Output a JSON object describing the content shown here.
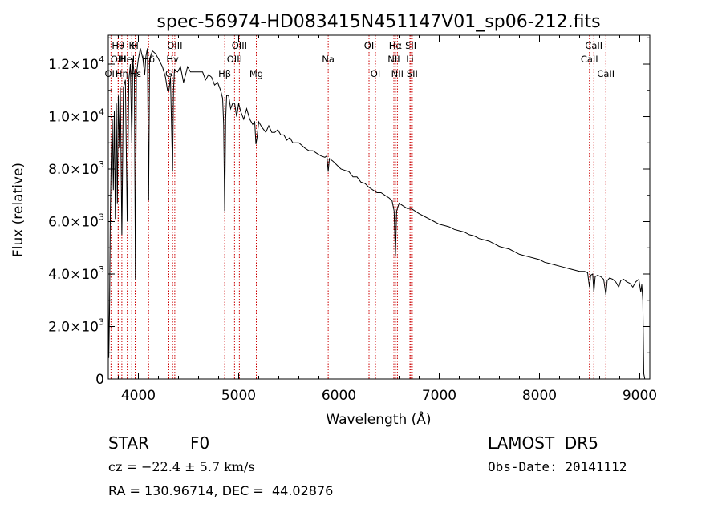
{
  "chart_data": {
    "type": "line",
    "title": "spec-56974-HD083415N451147V01_sp06-212.fits",
    "xlabel": "Wavelength (Å)",
    "ylabel": "Flux (relative)",
    "xlim": [
      3700,
      9100
    ],
    "ylim": [
      0,
      13100
    ],
    "grid": false,
    "xticks": [
      {
        "value": 4000,
        "label": "4000"
      },
      {
        "value": 5000,
        "label": "5000"
      },
      {
        "value": 6000,
        "label": "6000"
      },
      {
        "value": 7000,
        "label": "7000"
      },
      {
        "value": 8000,
        "label": "8000"
      },
      {
        "value": 9000,
        "label": "9000"
      }
    ],
    "yticks": [
      {
        "value": 0,
        "mant": "0",
        "exp": ""
      },
      {
        "value": 2000,
        "mant": "2.0×10",
        "exp": "3"
      },
      {
        "value": 4000,
        "mant": "4.0×10",
        "exp": "3"
      },
      {
        "value": 6000,
        "mant": "6.0×10",
        "exp": "3"
      },
      {
        "value": 8000,
        "mant": "8.0×10",
        "exp": "3"
      },
      {
        "value": 10000,
        "mant": "1.0×10",
        "exp": "4"
      },
      {
        "value": 12000,
        "mant": "1.2×10",
        "exp": "4"
      }
    ],
    "spectral_lines": [
      {
        "label": "OII",
        "wavelength": 3727,
        "row": 2
      },
      {
        "label": "Hθ",
        "wavelength": 3798,
        "row": 0
      },
      {
        "label": "OIII",
        "wavelength": 3800,
        "row": 1
      },
      {
        "label": "Hη",
        "wavelength": 3835,
        "row": 2
      },
      {
        "label": "HeI",
        "wavelength": 3889,
        "row": 1
      },
      {
        "label": "Hε",
        "wavelength": 3970,
        "row": 2
      },
      {
        "label": "K",
        "wavelength": 3934,
        "row": 0
      },
      {
        "label": "H",
        "wavelength": 3968,
        "row": 0
      },
      {
        "label": "Hδ",
        "wavelength": 4102,
        "row": 1
      },
      {
        "label": "G",
        "wavelength": 4304,
        "row": 2
      },
      {
        "label": "OIII",
        "wavelength": 4363,
        "row": 0
      },
      {
        "label": "Hγ",
        "wavelength": 4341,
        "row": 1
      },
      {
        "label": "Hβ",
        "wavelength": 4861,
        "row": 2
      },
      {
        "label": "OIII",
        "wavelength": 4959,
        "row": 1
      },
      {
        "label": "OIII",
        "wavelength": 5007,
        "row": 0
      },
      {
        "label": "Mg",
        "wavelength": 5176,
        "row": 2
      },
      {
        "label": "Na",
        "wavelength": 5893,
        "row": 1
      },
      {
        "label": "OI",
        "wavelength": 6300,
        "row": 0
      },
      {
        "label": "OI",
        "wavelength": 6364,
        "row": 2
      },
      {
        "label": "Hα",
        "wavelength": 6563,
        "row": 0
      },
      {
        "label": "NII",
        "wavelength": 6548,
        "row": 1
      },
      {
        "label": "NII",
        "wavelength": 6583,
        "row": 2
      },
      {
        "label": "SII",
        "wavelength": 6717,
        "row": 0
      },
      {
        "label": "Li",
        "wavelength": 6708,
        "row": 1
      },
      {
        "label": "SII",
        "wavelength": 6731,
        "row": 2
      },
      {
        "label": "CaII",
        "wavelength": 8498,
        "row": 1
      },
      {
        "label": "CaII",
        "wavelength": 8542,
        "row": 0
      },
      {
        "label": "CaII",
        "wavelength": 8662,
        "row": 2
      }
    ],
    "series": [
      {
        "points": [
          [
            3700,
            3500
          ],
          [
            3705,
            800
          ],
          [
            3712,
            2500
          ],
          [
            3720,
            6300
          ],
          [
            3730,
            8600
          ],
          [
            3740,
            9900
          ],
          [
            3750,
            7200
          ],
          [
            3760,
            10200
          ],
          [
            3770,
            6100
          ],
          [
            3780,
            10500
          ],
          [
            3790,
            6700
          ],
          [
            3800,
            10800
          ],
          [
            3810,
            8800
          ],
          [
            3820,
            11100
          ],
          [
            3835,
            5500
          ],
          [
            3850,
            11100
          ],
          [
            3870,
            11400
          ],
          [
            3889,
            6000
          ],
          [
            3905,
            11400
          ],
          [
            3920,
            12000
          ],
          [
            3934,
            9000
          ],
          [
            3945,
            12200
          ],
          [
            3960,
            11500
          ],
          [
            3970,
            3800
          ],
          [
            3980,
            11600
          ],
          [
            4000,
            12200
          ],
          [
            4020,
            12600
          ],
          [
            4045,
            12200
          ],
          [
            4063,
            11600
          ],
          [
            4075,
            12300
          ],
          [
            4090,
            12600
          ],
          [
            4102,
            6800
          ],
          [
            4112,
            12200
          ],
          [
            4140,
            12500
          ],
          [
            4170,
            12400
          ],
          [
            4200,
            12200
          ],
          [
            4240,
            11900
          ],
          [
            4270,
            11500
          ],
          [
            4290,
            11000
          ],
          [
            4305,
            11000
          ],
          [
            4320,
            11500
          ],
          [
            4341,
            7900
          ],
          [
            4350,
            11000
          ],
          [
            4360,
            11800
          ],
          [
            4390,
            11700
          ],
          [
            4420,
            11900
          ],
          [
            4450,
            11300
          ],
          [
            4470,
            11600
          ],
          [
            4490,
            11900
          ],
          [
            4520,
            11700
          ],
          [
            4550,
            11700
          ],
          [
            4580,
            11700
          ],
          [
            4610,
            11700
          ],
          [
            4640,
            11700
          ],
          [
            4670,
            11400
          ],
          [
            4700,
            11600
          ],
          [
            4730,
            11500
          ],
          [
            4760,
            11200
          ],
          [
            4790,
            11300
          ],
          [
            4820,
            11000
          ],
          [
            4840,
            10700
          ],
          [
            4850,
            9700
          ],
          [
            4861,
            6400
          ],
          [
            4870,
            9900
          ],
          [
            4880,
            10800
          ],
          [
            4900,
            10800
          ],
          [
            4920,
            10300
          ],
          [
            4940,
            10500
          ],
          [
            4960,
            10500
          ],
          [
            4980,
            10000
          ],
          [
            5000,
            10500
          ],
          [
            5020,
            10200
          ],
          [
            5050,
            9900
          ],
          [
            5080,
            10300
          ],
          [
            5110,
            9900
          ],
          [
            5140,
            9700
          ],
          [
            5160,
            9800
          ],
          [
            5172,
            8950
          ],
          [
            5183,
            9200
          ],
          [
            5200,
            9800
          ],
          [
            5230,
            9600
          ],
          [
            5270,
            9400
          ],
          [
            5300,
            9650
          ],
          [
            5330,
            9400
          ],
          [
            5360,
            9400
          ],
          [
            5390,
            9500
          ],
          [
            5420,
            9300
          ],
          [
            5450,
            9300
          ],
          [
            5480,
            9100
          ],
          [
            5510,
            9200
          ],
          [
            5540,
            9000
          ],
          [
            5570,
            9000
          ],
          [
            5600,
            9000
          ],
          [
            5630,
            8900
          ],
          [
            5660,
            8800
          ],
          [
            5700,
            8700
          ],
          [
            5740,
            8700
          ],
          [
            5780,
            8600
          ],
          [
            5820,
            8500
          ],
          [
            5860,
            8450
          ],
          [
            5880,
            8500
          ],
          [
            5893,
            7900
          ],
          [
            5905,
            8400
          ],
          [
            5940,
            8300
          ],
          [
            5980,
            8150
          ],
          [
            6020,
            8000
          ],
          [
            6060,
            7950
          ],
          [
            6100,
            7900
          ],
          [
            6140,
            7700
          ],
          [
            6180,
            7700
          ],
          [
            6220,
            7500
          ],
          [
            6260,
            7450
          ],
          [
            6300,
            7300
          ],
          [
            6340,
            7200
          ],
          [
            6380,
            7100
          ],
          [
            6420,
            7100
          ],
          [
            6460,
            7000
          ],
          [
            6500,
            6900
          ],
          [
            6530,
            6800
          ],
          [
            6550,
            6400
          ],
          [
            6563,
            4700
          ],
          [
            6575,
            6400
          ],
          [
            6600,
            6700
          ],
          [
            6640,
            6600
          ],
          [
            6680,
            6500
          ],
          [
            6720,
            6500
          ],
          [
            6760,
            6400
          ],
          [
            6800,
            6300
          ],
          [
            6850,
            6200
          ],
          [
            6900,
            6100
          ],
          [
            6950,
            6000
          ],
          [
            7000,
            5900
          ],
          [
            7050,
            5850
          ],
          [
            7100,
            5800
          ],
          [
            7150,
            5700
          ],
          [
            7200,
            5650
          ],
          [
            7250,
            5600
          ],
          [
            7300,
            5500
          ],
          [
            7350,
            5450
          ],
          [
            7400,
            5350
          ],
          [
            7450,
            5300
          ],
          [
            7500,
            5250
          ],
          [
            7550,
            5150
          ],
          [
            7600,
            5050
          ],
          [
            7650,
            5000
          ],
          [
            7700,
            4950
          ],
          [
            7750,
            4850
          ],
          [
            7800,
            4750
          ],
          [
            7850,
            4700
          ],
          [
            7900,
            4650
          ],
          [
            7950,
            4600
          ],
          [
            8000,
            4550
          ],
          [
            8050,
            4450
          ],
          [
            8100,
            4400
          ],
          [
            8150,
            4350
          ],
          [
            8200,
            4300
          ],
          [
            8250,
            4250
          ],
          [
            8300,
            4200
          ],
          [
            8350,
            4150
          ],
          [
            8400,
            4100
          ],
          [
            8450,
            4100
          ],
          [
            8480,
            4050
          ],
          [
            8498,
            3500
          ],
          [
            8510,
            3950
          ],
          [
            8530,
            4000
          ],
          [
            8542,
            3300
          ],
          [
            8555,
            3900
          ],
          [
            8580,
            3950
          ],
          [
            8610,
            3900
          ],
          [
            8640,
            3800
          ],
          [
            8662,
            3200
          ],
          [
            8675,
            3750
          ],
          [
            8700,
            3850
          ],
          [
            8730,
            3800
          ],
          [
            8760,
            3700
          ],
          [
            8790,
            3500
          ],
          [
            8810,
            3750
          ],
          [
            8840,
            3800
          ],
          [
            8870,
            3700
          ],
          [
            8900,
            3650
          ],
          [
            8930,
            3500
          ],
          [
            8960,
            3700
          ],
          [
            8990,
            3800
          ],
          [
            9010,
            3300
          ],
          [
            9020,
            3600
          ],
          [
            9030,
            3000
          ],
          [
            9040,
            200
          ],
          [
            9050,
            0
          ]
        ]
      }
    ]
  },
  "footer": {
    "object_class": "STAR",
    "subclass": "F0",
    "survey": "LAMOST  DR5",
    "cz": "cz = −22.4 ± 5.7 km/s",
    "obs_date": "Obs-Date: 20141112",
    "radec": "RA = 130.96714, DEC =  44.02876"
  },
  "colors": {
    "spectrum": "#000000",
    "line_markers": "#cc0000",
    "axes": "#000000",
    "background": "#ffffff"
  }
}
